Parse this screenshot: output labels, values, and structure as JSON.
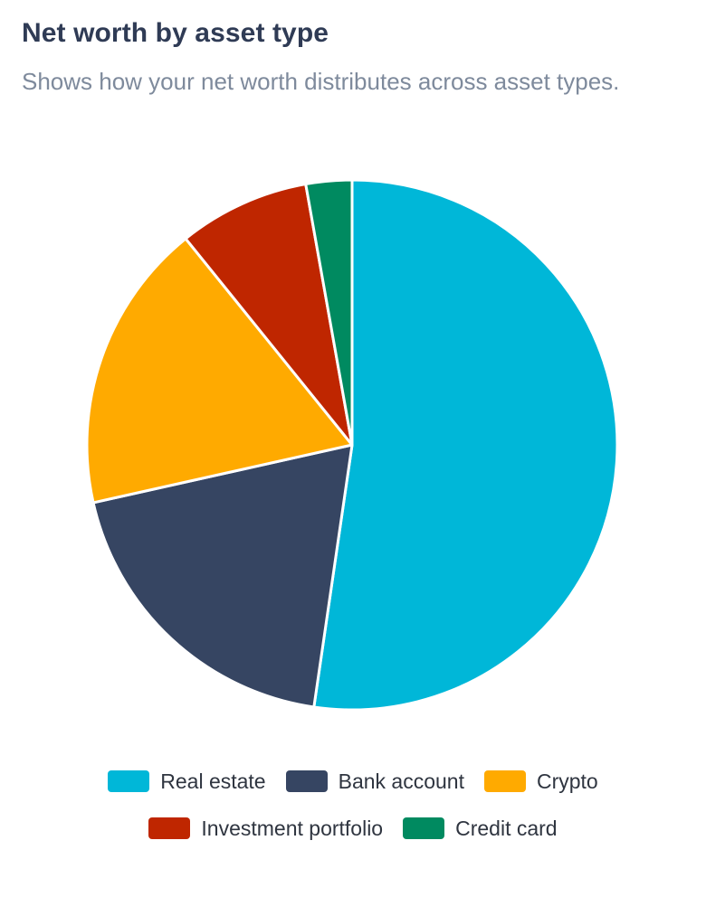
{
  "header": {
    "title": "Net worth by asset type",
    "subtitle": "Shows how your net worth distributes across asset types."
  },
  "chart_data": {
    "type": "pie",
    "title": "Net worth by asset type",
    "subtitle": "Shows how your net worth distributes across asset types.",
    "categories": [
      "Real estate",
      "Bank account",
      "Crypto",
      "Investment portfolio",
      "Credit card"
    ],
    "values": [
      52.3,
      19.2,
      17.7,
      8.0,
      2.8
    ],
    "unit": "%",
    "colors": [
      "#00b7d8",
      "#364562",
      "#ffaa00",
      "#bf2600",
      "#008a60"
    ],
    "slice_border_color": "#ffffff",
    "start_angle_deg": 0,
    "direction": "clockwise",
    "legend_position": "bottom"
  },
  "legend": {
    "rows": [
      [
        {
          "label": "Real estate",
          "color": "#00b7d8"
        },
        {
          "label": "Bank account",
          "color": "#364562"
        },
        {
          "label": "Crypto",
          "color": "#ffaa00"
        }
      ],
      [
        {
          "label": "Investment portfolio",
          "color": "#bf2600"
        },
        {
          "label": "Credit card",
          "color": "#008a60"
        }
      ]
    ]
  }
}
